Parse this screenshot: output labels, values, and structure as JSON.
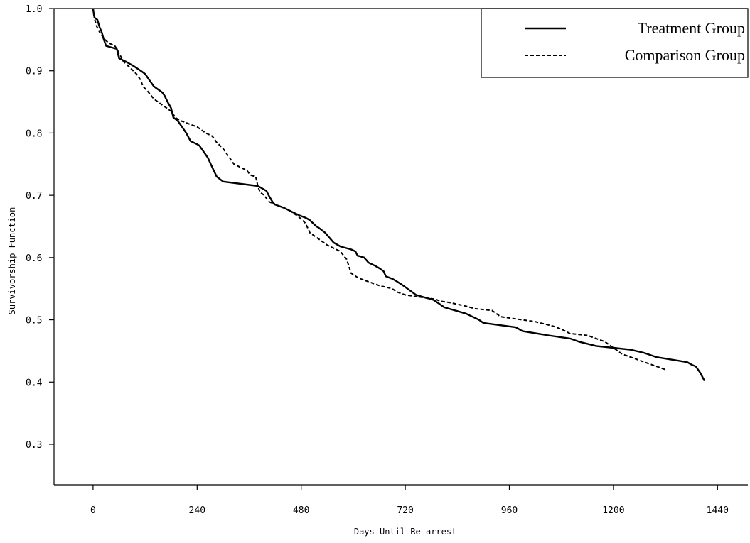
{
  "chart_data": {
    "type": "line",
    "xlabel": "Days Until Re-arrest",
    "ylabel": "Survivorship Function",
    "xlim": [
      -90,
      1510
    ],
    "ylim": [
      0.235,
      1.0
    ],
    "xticks": [
      0,
      240,
      480,
      720,
      960,
      1200,
      1440
    ],
    "yticks": [
      0.3,
      0.4,
      0.5,
      0.6,
      0.7,
      0.8,
      0.9,
      1.0
    ],
    "ytick_labels": [
      "0.3",
      "0.4",
      "0.5",
      "0.6",
      "0.7",
      "0.8",
      "0.9",
      "1.0"
    ],
    "grid": false,
    "legend_position": "top-right",
    "series": [
      {
        "name": "Treatment Group",
        "style": "solid",
        "color": "#000000",
        "x": [
          0,
          2,
          4,
          10,
          15,
          20,
          25,
          30,
          55,
          60,
          75,
          95,
          110,
          120,
          130,
          140,
          150,
          160,
          165,
          172,
          180,
          185,
          195,
          205,
          215,
          225,
          240,
          245,
          260,
          265,
          275,
          285,
          300,
          380,
          385,
          400,
          405,
          415,
          420,
          440,
          460,
          475,
          490,
          500,
          515,
          520,
          535,
          545,
          555,
          570,
          595,
          605,
          610,
          625,
          635,
          650,
          660,
          670,
          675,
          690,
          700,
          715,
          725,
          745,
          770,
          785,
          800,
          810,
          860,
          890,
          900,
          975,
          990,
          1050,
          1100,
          1120,
          1160,
          1200,
          1240,
          1270,
          1300,
          1370,
          1380,
          1390,
          1400,
          1410
        ],
        "y": [
          1.0,
          0.99,
          0.985,
          0.982,
          0.97,
          0.962,
          0.95,
          0.94,
          0.935,
          0.92,
          0.915,
          0.907,
          0.9,
          0.895,
          0.885,
          0.875,
          0.87,
          0.865,
          0.86,
          0.85,
          0.84,
          0.825,
          0.82,
          0.81,
          0.8,
          0.787,
          0.782,
          0.78,
          0.765,
          0.76,
          0.745,
          0.73,
          0.722,
          0.715,
          0.713,
          0.707,
          0.7,
          0.688,
          0.685,
          0.68,
          0.673,
          0.668,
          0.664,
          0.66,
          0.65,
          0.648,
          0.64,
          0.632,
          0.624,
          0.618,
          0.613,
          0.61,
          0.603,
          0.6,
          0.592,
          0.587,
          0.583,
          0.578,
          0.57,
          0.566,
          0.562,
          0.555,
          0.55,
          0.54,
          0.535,
          0.532,
          0.525,
          0.52,
          0.51,
          0.5,
          0.495,
          0.488,
          0.482,
          0.475,
          0.47,
          0.465,
          0.458,
          0.455,
          0.452,
          0.447,
          0.44,
          0.432,
          0.428,
          0.425,
          0.415,
          0.402
        ]
      },
      {
        "name": "Comparison Group",
        "style": "dashed",
        "color": "#000000",
        "x": [
          0,
          3,
          8,
          15,
          25,
          35,
          50,
          55,
          60,
          70,
          85,
          100,
          110,
          115,
          125,
          140,
          150,
          160,
          170,
          180,
          190,
          200,
          210,
          220,
          240,
          250,
          260,
          275,
          285,
          300,
          310,
          325,
          355,
          360,
          365,
          375,
          380,
          385,
          395,
          405,
          420,
          440,
          455,
          465,
          475,
          490,
          500,
          520,
          540,
          570,
          585,
          595,
          610,
          620,
          640,
          660,
          690,
          700,
          720,
          740,
          770,
          790,
          800,
          820,
          840,
          860,
          880,
          920,
          940,
          990,
          1020,
          1060,
          1080,
          1100,
          1140,
          1160,
          1180,
          1200,
          1220,
          1240,
          1260,
          1280,
          1300,
          1320
        ],
        "y": [
          1.0,
          0.985,
          0.972,
          0.962,
          0.952,
          0.945,
          0.94,
          0.935,
          0.928,
          0.915,
          0.905,
          0.895,
          0.885,
          0.875,
          0.868,
          0.855,
          0.85,
          0.845,
          0.84,
          0.835,
          0.825,
          0.82,
          0.818,
          0.815,
          0.81,
          0.805,
          0.8,
          0.795,
          0.785,
          0.775,
          0.765,
          0.75,
          0.74,
          0.735,
          0.732,
          0.73,
          0.715,
          0.705,
          0.7,
          0.69,
          0.685,
          0.68,
          0.675,
          0.67,
          0.665,
          0.655,
          0.64,
          0.63,
          0.62,
          0.61,
          0.597,
          0.575,
          0.568,
          0.565,
          0.56,
          0.555,
          0.55,
          0.545,
          0.54,
          0.538,
          0.535,
          0.533,
          0.53,
          0.528,
          0.525,
          0.522,
          0.518,
          0.515,
          0.505,
          0.5,
          0.497,
          0.49,
          0.485,
          0.478,
          0.475,
          0.47,
          0.465,
          0.455,
          0.445,
          0.44,
          0.435,
          0.43,
          0.425,
          0.42
        ]
      }
    ]
  }
}
